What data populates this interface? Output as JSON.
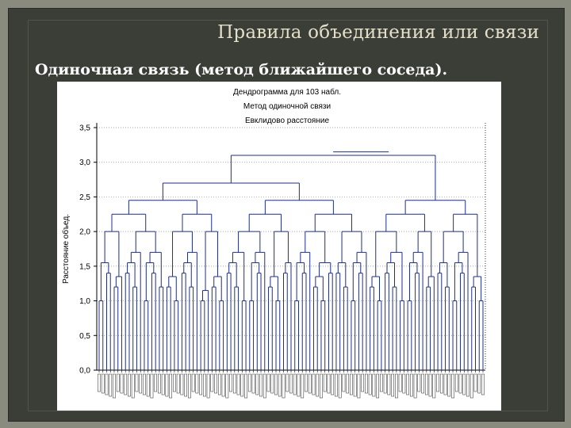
{
  "slide": {
    "title": "Правила объединения или связи",
    "subtitle": "Одиночная связь (метод ближайшего соседа)."
  },
  "colors": {
    "link": "#1e2f86",
    "axis": "#000000",
    "grid": "#8a8a8a",
    "background_slide": "#3b3d37",
    "title_text": "#e3dfc9"
  },
  "chart_data": {
    "type": "dendrogram",
    "title_lines": [
      "Дендрограмма для 103 набл.",
      "Метод одиночной связи",
      "Евклидово расстояние"
    ],
    "ylabel": "Расстояние объед.",
    "ylim": [
      0,
      3.5
    ],
    "yticks": [
      "3,5",
      "3,0",
      "2,5",
      "2,0",
      "1,5",
      "1,0",
      "0,5",
      "0,0"
    ],
    "ytick_values": [
      3.5,
      3.0,
      2.5,
      2.0,
      1.5,
      1.0,
      0.5,
      0.0
    ],
    "grid": "horizontal dotted",
    "leaf_count": 103,
    "merges": [
      {
        "left": 0.0,
        "right": 1.0,
        "height": 1.4,
        "note": "C_14/C_53"
      },
      {
        "left": 2.0,
        "right": 3.0,
        "height": 1.4
      },
      {
        "left": 0.5,
        "right": 2.5,
        "height": 1.73
      },
      {
        "left": 1.5,
        "right": 4.0,
        "height": 2.65
      },
      {
        "left": 2.75,
        "right": 6.0,
        "height": 3.3
      },
      {
        "left": 4.3,
        "right": 16.0,
        "height": 3.1
      }
    ]
  }
}
